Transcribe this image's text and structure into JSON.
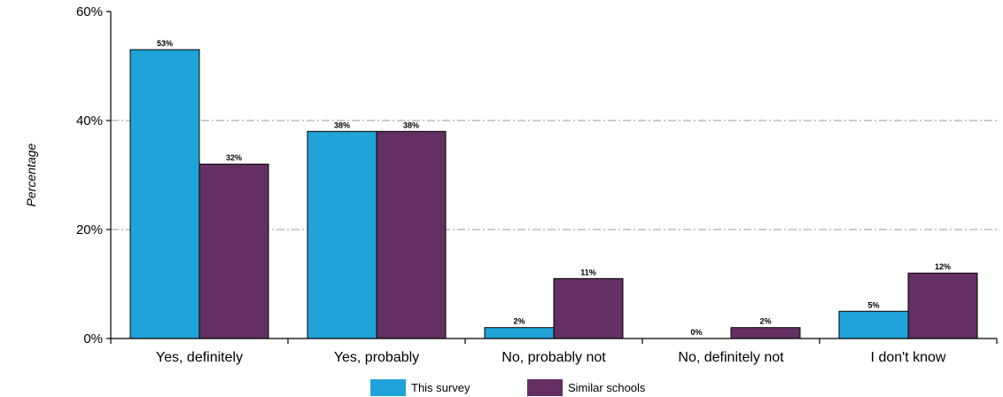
{
  "chart_data": {
    "type": "bar",
    "categories": [
      "Yes, definitely",
      "Yes, probably",
      "No, probably not",
      "No, definitely not",
      "I don't know"
    ],
    "series": [
      {
        "name": "This survey",
        "values": [
          53,
          38,
          2,
          0,
          5
        ],
        "labels": [
          "53%",
          "38%",
          "2%",
          "0%",
          "5%"
        ],
        "color": "#1fa3d8"
      },
      {
        "name": "Similar schools",
        "values": [
          32,
          38,
          11,
          2,
          12
        ],
        "labels": [
          "32%",
          "38%",
          "11%",
          "2%",
          "12%"
        ],
        "color": "#642f62"
      }
    ],
    "ylabel": "Percentage",
    "ylim": [
      0,
      60
    ],
    "yticks": [
      0,
      20,
      40,
      60
    ],
    "ytick_labels": [
      "0%",
      "20%",
      "40%",
      "60%"
    ],
    "grid": true,
    "legend": "bottom-center"
  }
}
